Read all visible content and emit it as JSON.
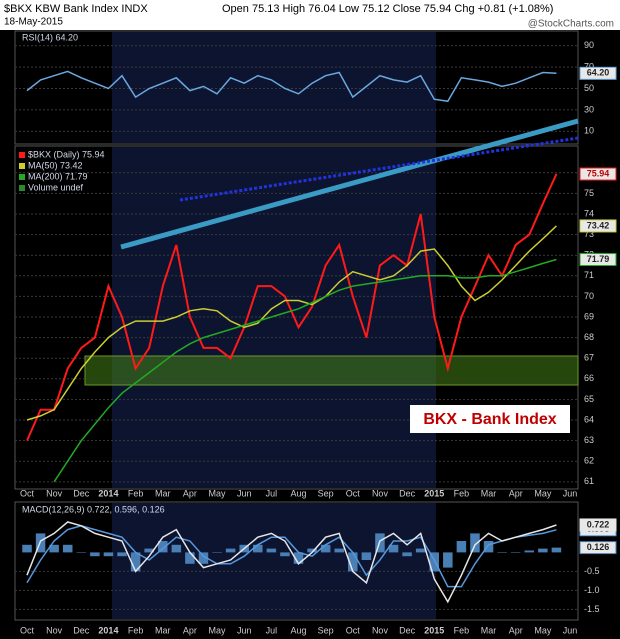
{
  "header": {
    "title": "$BKX KBW Bank Index INDX",
    "date": "18-May-2015",
    "quote": "Open 75.13 High 76.04 Low 75.12 Close 75.94 Chg +0.81 (+1.08%)",
    "credit": "@StockCharts.com"
  },
  "chart_data": [
    {
      "type": "line",
      "ylim": [
        0,
        100
      ],
      "yticks": [
        10,
        30,
        50,
        70,
        90
      ],
      "grid": true,
      "series": [
        {
          "name": "RSI(14) 64.20",
          "color": "#6aa8e0",
          "values": [
            48,
            58,
            62,
            66,
            60,
            55,
            50,
            62,
            42,
            50,
            55,
            60,
            48,
            52,
            45,
            60,
            55,
            62,
            58,
            50,
            45,
            55,
            62,
            65,
            42,
            52,
            62,
            58,
            56,
            62,
            40,
            38,
            60,
            58,
            56,
            52,
            55,
            60,
            65,
            64.2,
            null
          ],
          "value_labels": [
            null,
            null,
            null,
            null,
            null,
            null,
            null,
            null,
            null,
            null,
            null,
            null,
            null,
            null,
            null,
            null,
            null,
            null,
            null,
            null,
            null,
            null,
            null,
            null,
            null,
            null,
            null,
            null,
            null,
            null,
            null,
            null,
            null,
            null,
            null,
            null,
            null,
            null,
            null,
            "64.20",
            null
          ]
        }
      ]
    },
    {
      "type": "line",
      "ylim": [
        60.7,
        77.3
      ],
      "yticks": [
        61,
        62,
        63,
        64,
        65,
        66,
        67,
        68,
        69,
        70,
        71,
        72,
        73,
        74,
        75,
        76
      ],
      "grid": true,
      "categories": [
        "Oct",
        null,
        "Nov",
        null,
        "Dec",
        null,
        "2014",
        null,
        "Feb",
        null,
        "Mar",
        null,
        "Apr",
        null,
        "May",
        null,
        "Jun",
        null,
        "Jul",
        null,
        "Aug",
        null,
        "Sep",
        null,
        "Oct",
        null,
        "Nov",
        null,
        "Dec",
        null,
        "2015",
        null,
        "Feb",
        null,
        "Mar",
        null,
        "Apr",
        null,
        "May",
        null,
        "Jun"
      ],
      "series": [
        {
          "name": "$BKX (Daily) 75.94",
          "color": "#ff1a1a",
          "values": [
            63.0,
            64.5,
            64.5,
            66.5,
            67.5,
            68.0,
            70.5,
            69.0,
            66.5,
            67.5,
            70.5,
            72.5,
            69.0,
            67.5,
            67.5,
            67.0,
            68.5,
            70.5,
            70.5,
            70.0,
            68.5,
            69.5,
            71.5,
            72.5,
            70.0,
            68.0,
            71.5,
            72.0,
            71.5,
            74.0,
            69.0,
            66.5,
            69.0,
            70.5,
            72.0,
            71.0,
            72.5,
            73.0,
            74.5,
            75.94,
            null
          ]
        },
        {
          "name": "MA(50) 73.42",
          "color": "#cccc33",
          "values": [
            64.0,
            64.2,
            64.5,
            65.5,
            66.5,
            67.3,
            68.0,
            68.5,
            68.8,
            68.8,
            68.8,
            69.0,
            69.3,
            69.4,
            69.3,
            68.8,
            68.5,
            68.7,
            69.4,
            69.8,
            69.8,
            69.6,
            70.0,
            70.7,
            71.2,
            71.0,
            70.8,
            71.0,
            71.5,
            72.2,
            72.3,
            71.5,
            70.5,
            69.8,
            70.2,
            70.8,
            71.5,
            72.2,
            72.8,
            73.42,
            null
          ]
        },
        {
          "name": "MA(200) 71.79",
          "color": "#22aa22",
          "values": [
            null,
            null,
            61.0,
            62.0,
            63.0,
            63.8,
            64.6,
            65.3,
            65.8,
            66.3,
            66.8,
            67.3,
            67.7,
            68.0,
            68.2,
            68.4,
            68.6,
            68.8,
            69.0,
            69.2,
            69.4,
            69.7,
            70.0,
            70.3,
            70.5,
            70.6,
            70.7,
            70.8,
            70.9,
            71.0,
            71.0,
            71.0,
            70.9,
            70.9,
            71.0,
            71.0,
            71.2,
            71.4,
            71.6,
            71.79,
            null
          ]
        }
      ],
      "legend_extra": "Volume undef",
      "annotation": "BKX - Bank Index"
    },
    {
      "type": "line",
      "ylim": [
        -1.7,
        1.3
      ],
      "yticks": [
        -1.5,
        {
          "value": -1,
          "label": "-1.0"
        },
        -0.5
      ],
      "grid": true,
      "categories": [
        "Oct",
        null,
        "Nov",
        null,
        "Dec",
        null,
        "2014",
        null,
        "Feb",
        null,
        "Mar",
        null,
        "Apr",
        null,
        "May",
        null,
        "Jun",
        null,
        "Jul",
        null,
        "Aug",
        null,
        "Sep",
        null,
        "Oct",
        null,
        "Nov",
        null,
        "Dec",
        null,
        "2015",
        null,
        "Feb",
        null,
        "Mar",
        null,
        "Apr",
        null,
        "May",
        null,
        "Jun"
      ],
      "legend": "MACD(12,26,9) 0.722, 0.596, 0.126",
      "series": [
        {
          "type": "bar",
          "color": "#4a7fb5",
          "values": [
            0.2,
            0.5,
            0.2,
            0.2,
            0.0,
            -0.1,
            -0.1,
            -0.1,
            -0.5,
            0.1,
            0.3,
            0.2,
            -0.3,
            -0.3,
            0.0,
            0.1,
            0.2,
            0.2,
            0.1,
            -0.1,
            -0.3,
            0.1,
            0.2,
            0.1,
            -0.5,
            -0.2,
            0.5,
            0.2,
            -0.1,
            0.1,
            -0.5,
            -0.4,
            0.3,
            0.5,
            0.3,
            0.0,
            0.0,
            0.05,
            0.1,
            0.126,
            null
          ]
        },
        {
          "type": "line",
          "color": "#5599dd",
          "values": [
            -0.8,
            -0.2,
            0.3,
            0.6,
            0.7,
            0.6,
            0.5,
            0.4,
            0.0,
            -0.2,
            0.1,
            0.4,
            0.3,
            -0.1,
            -0.3,
            -0.3,
            -0.1,
            0.2,
            0.4,
            0.4,
            0.0,
            -0.1,
            0.2,
            0.4,
            0.0,
            -0.6,
            -0.2,
            0.3,
            0.3,
            0.4,
            -0.2,
            -0.9,
            -0.9,
            -0.3,
            0.2,
            0.3,
            0.4,
            0.45,
            0.5,
            0.596,
            null
          ]
        },
        {
          "type": "line",
          "color": "#e6e6e6",
          "values": [
            -0.6,
            0.3,
            0.5,
            0.8,
            0.7,
            0.5,
            0.4,
            0.3,
            -0.5,
            -0.1,
            0.4,
            0.6,
            0.0,
            -0.4,
            -0.3,
            -0.2,
            0.1,
            0.4,
            0.5,
            0.3,
            -0.3,
            0.0,
            0.4,
            0.5,
            -0.5,
            -0.8,
            0.3,
            0.5,
            0.2,
            0.5,
            -0.7,
            -1.3,
            -0.6,
            0.2,
            0.5,
            0.3,
            0.4,
            0.5,
            0.6,
            0.722,
            null
          ]
        }
      ]
    }
  ]
}
